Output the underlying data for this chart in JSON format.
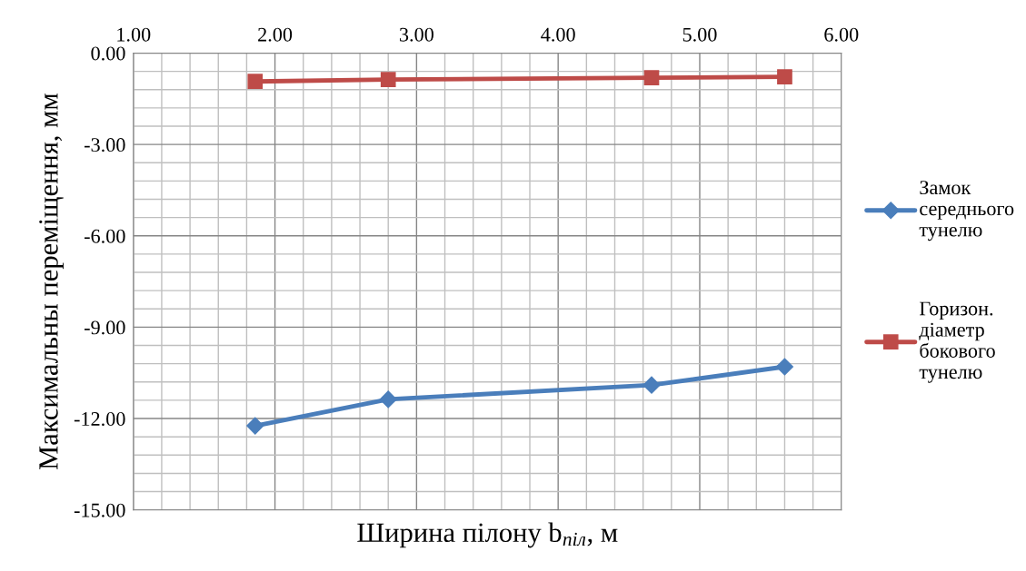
{
  "chart_data": {
    "type": "line",
    "xlabel": "Ширина пілону b$_{піл}$, м",
    "ylabel": "Максимальны переміщення, мм",
    "xlim": [
      1,
      6
    ],
    "xticks": [
      {
        "value": 1,
        "label": "1.00"
      },
      {
        "value": 2,
        "label": "2.00"
      },
      {
        "value": 3,
        "label": "3.00"
      },
      {
        "value": 4,
        "label": "4.00"
      },
      {
        "value": 5,
        "label": "5.00"
      },
      {
        "value": 6,
        "label": "6.00"
      }
    ],
    "ylim": [
      -15,
      0
    ],
    "yticks": [
      {
        "value": -15,
        "label": "-15.00"
      },
      {
        "value": -12,
        "label": "-12.00"
      },
      {
        "value": -9,
        "label": "-9.00"
      },
      {
        "value": -6,
        "label": "-6.00"
      },
      {
        "value": -3,
        "label": "-3.00"
      },
      {
        "value": 0,
        "label": "0.00"
      }
    ],
    "grid": true,
    "legend": "right",
    "line_style": "solid",
    "series": [
      {
        "name": "Замок\nсереднього\nтунелю",
        "color": "#4a7ebb",
        "marker": "diamond",
        "x": [
          1.86,
          2.8,
          4.66,
          5.6
        ],
        "values": [
          -12.24,
          -11.37,
          -10.9,
          -10.3
        ]
      },
      {
        "name": "Горизон.\nдіаметр\nбокового\nтунелю",
        "color": "#be4b48",
        "marker": "square",
        "x": [
          1.86,
          2.8,
          4.66,
          5.6
        ],
        "values": [
          -0.93,
          -0.87,
          -0.81,
          -0.78
        ]
      }
    ]
  }
}
